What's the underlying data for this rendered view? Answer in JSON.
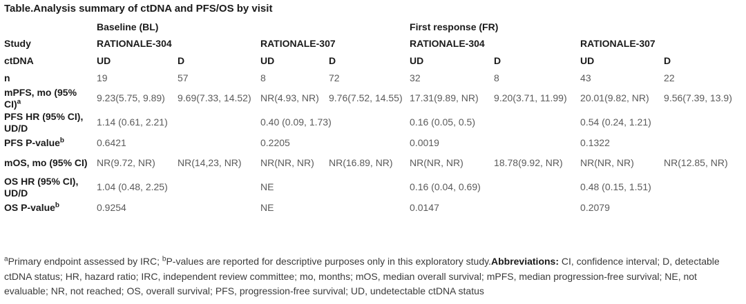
{
  "title": "Table.Analysis summary of ctDNA and PFS/OS by visit",
  "header": {
    "baseline": "Baseline (BL)",
    "first_response": "First response (FR)",
    "study_label": "Study",
    "ctdna_label": "ctDNA",
    "r304": "RATIONALE-304",
    "r307": "RATIONALE-307",
    "ud": "UD",
    "d": "D"
  },
  "rows": [
    {
      "label": "n",
      "sup": "",
      "cells": [
        "19",
        "57",
        "8",
        "72",
        "32",
        "8",
        "43",
        "22"
      ]
    },
    {
      "label": "mPFS, mo (95% CI)",
      "sup": "a",
      "cells": [
        "9.23(5.75, 9.89)",
        "9.69(7.33, 14.52)",
        "NR(4.93, NR)",
        "9.76(7.52, 14.55)",
        "17.31(9.89, NR)",
        "9.20(3.71, 11.99)",
        "20.01(9.82, NR)",
        "9.56(7.39, 13.9)"
      ]
    },
    {
      "label": "PFS HR (95% CI), UD/D",
      "sup": "",
      "cells": [
        "1.14 (0.61, 2.21)",
        "0.40 (0.09, 1.73)",
        "0.16 (0.05, 0.5)",
        "0.54 (0.24, 1.21)"
      ]
    },
    {
      "label": "PFS P-value",
      "sup": "b",
      "cells": [
        "0.6421",
        "0.2205",
        "0.0019",
        "0.1322"
      ]
    },
    {
      "label": "mOS, mo (95% CI)",
      "sup": "",
      "cells": [
        "NR(9.72, NR)",
        "NR(14,23, NR)",
        "NR(NR, NR)",
        "NR(16.89, NR)",
        "NR(NR, NR)",
        "18.78(9.92, NR)",
        "NR(NR, NR)",
        "NR(12.85, NR)"
      ]
    },
    {
      "label": "OS HR (95% CI), UD/D",
      "sup": "",
      "cells": [
        "1.04 (0.48, 2.25)",
        "NE",
        "0.16 (0.04, 0.69)",
        "0.48 (0.15, 1.51)"
      ]
    },
    {
      "label": "OS P-value",
      "sup": "b",
      "cells": [
        "0.9254",
        "NE",
        "0.0147",
        "0.2079"
      ]
    }
  ],
  "footnote": {
    "sup_a": "a",
    "note_a": "Primary endpoint assessed by IRC; ",
    "sup_b": "b",
    "note_b": "P-values are reported for descriptive purposes only in this exploratory study.",
    "abbr_label": "Abbreviations:",
    "abbr_text": " CI, confidence interval; D, detectable ctDNA status; HR, hazard ratio; IRC, independent review committee; mo, months; mOS, median overall survival; mPFS, median progression-free survival; NE, not evaluable; NR, not reached; OS, overall survival; PFS, progression-free survival; UD, undetectable ctDNA status"
  }
}
